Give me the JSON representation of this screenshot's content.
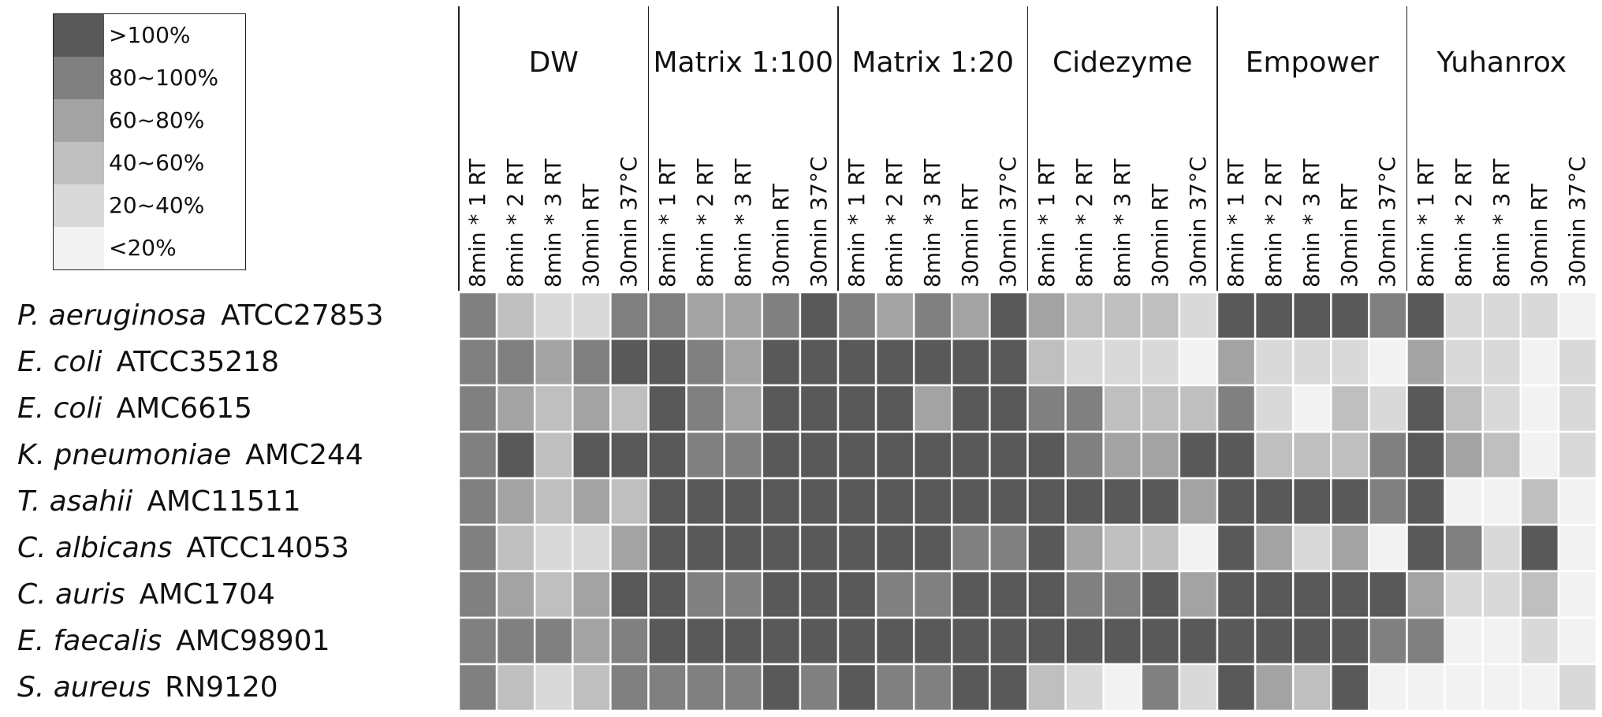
{
  "chart_data": {
    "type": "heatmap",
    "legend": {
      "placement": "top-left",
      "entries": [
        {
          "label": ">100%",
          "color": "#595959"
        },
        {
          "label": "80~100%",
          "color": "#808080"
        },
        {
          "label": "60~80%",
          "color": "#a3a3a3"
        },
        {
          "label": "40~60%",
          "color": "#bfbfbf"
        },
        {
          "label": "20~40%",
          "color": "#d9d9d9"
        },
        {
          "label": "<20%",
          "color": "#f2f2f2"
        }
      ]
    },
    "groups": [
      "DW",
      "Matrix 1:100",
      "Matrix 1:20",
      "Cidezyme",
      "Empower",
      "Yuhanrox"
    ],
    "conditions": [
      "8min * 1 RT",
      "8min * 2 RT",
      "8min * 3 RT",
      "30min RT",
      "30min 37°C"
    ],
    "rows": [
      {
        "species": "P. aeruginosa",
        "strain": "ATCC27853"
      },
      {
        "species": "E. coli",
        "strain": "ATCC35218"
      },
      {
        "species": "E. coli",
        "strain": "AMC6615"
      },
      {
        "species": "K. pneumoniae",
        "strain": "AMC244"
      },
      {
        "species": "T. asahii",
        "strain": "AMC11511"
      },
      {
        "species": "C. albicans",
        "strain": "ATCC14053"
      },
      {
        "species": "C. auris",
        "strain": "AMC1704"
      },
      {
        "species": "E. faecalis",
        "strain": "AMC98901"
      },
      {
        "species": "S. aureus",
        "strain": "RN9120"
      }
    ],
    "values": [
      [
        1,
        3,
        4,
        4,
        1,
        1,
        2,
        2,
        1,
        0,
        1,
        2,
        1,
        2,
        0,
        2,
        3,
        3,
        3,
        4,
        0,
        0,
        0,
        0,
        1,
        0,
        4,
        4,
        4,
        5
      ],
      [
        1,
        1,
        2,
        1,
        0,
        0,
        1,
        2,
        0,
        0,
        0,
        0,
        0,
        0,
        0,
        3,
        4,
        4,
        4,
        5,
        2,
        4,
        4,
        4,
        5,
        2,
        4,
        4,
        5,
        4
      ],
      [
        1,
        2,
        3,
        2,
        3,
        0,
        1,
        2,
        0,
        0,
        0,
        0,
        2,
        0,
        0,
        1,
        1,
        3,
        3,
        3,
        1,
        4,
        5,
        3,
        4,
        0,
        3,
        4,
        5,
        4
      ],
      [
        1,
        0,
        3,
        0,
        0,
        0,
        1,
        1,
        0,
        0,
        0,
        0,
        0,
        0,
        0,
        0,
        1,
        2,
        2,
        0,
        0,
        3,
        3,
        3,
        1,
        0,
        2,
        3,
        5,
        4
      ],
      [
        1,
        2,
        3,
        2,
        3,
        0,
        0,
        0,
        0,
        0,
        0,
        0,
        0,
        0,
        0,
        0,
        0,
        0,
        0,
        2,
        0,
        0,
        0,
        0,
        1,
        0,
        5,
        5,
        3,
        5
      ],
      [
        1,
        3,
        4,
        4,
        2,
        0,
        0,
        0,
        0,
        0,
        0,
        0,
        0,
        1,
        1,
        0,
        2,
        3,
        3,
        5,
        0,
        2,
        4,
        2,
        5,
        0,
        1,
        4,
        0,
        5
      ],
      [
        1,
        2,
        3,
        2,
        0,
        0,
        1,
        1,
        0,
        0,
        0,
        1,
        1,
        0,
        0,
        0,
        1,
        1,
        0,
        2,
        0,
        0,
        0,
        0,
        0,
        2,
        4,
        4,
        3,
        5
      ],
      [
        1,
        1,
        1,
        2,
        1,
        0,
        0,
        0,
        0,
        0,
        0,
        0,
        0,
        0,
        0,
        0,
        0,
        0,
        0,
        0,
        0,
        0,
        0,
        0,
        1,
        1,
        5,
        5,
        4,
        5
      ],
      [
        1,
        3,
        4,
        3,
        1,
        1,
        1,
        1,
        0,
        1,
        0,
        1,
        1,
        0,
        0,
        3,
        4,
        5,
        1,
        4,
        0,
        2,
        3,
        0,
        5,
        5,
        5,
        5,
        5,
        4
      ]
    ]
  }
}
